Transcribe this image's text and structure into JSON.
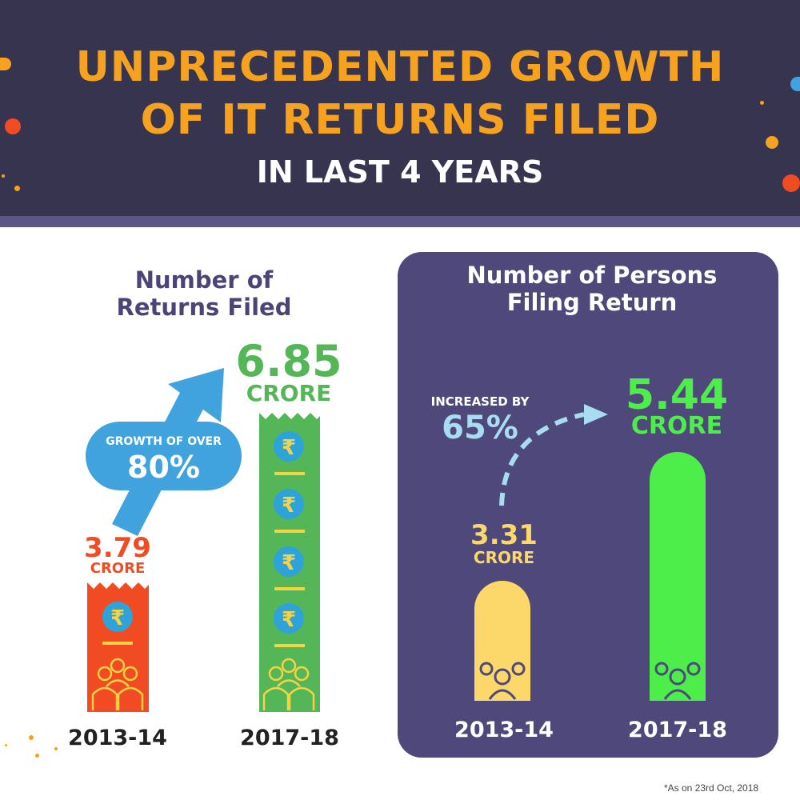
{
  "header": {
    "title_line1": "UNPRECEDENTED GROWTH",
    "title_line2": "OF IT RETURNS FILED",
    "subtitle": "IN LAST 4 YEARS"
  },
  "left_panel": {
    "heading": "Number of Returns Filed",
    "growth_label": "GROWTH OF OVER",
    "growth_value": "80%"
  },
  "right_panel": {
    "heading": "Number of Persons Filing Return",
    "increase_label": "INCREASED BY",
    "increase_value": "65%"
  },
  "footnote": "*As on 23rd Oct, 2018",
  "colors": {
    "header_bg": "#373450",
    "title": "#f6a21e",
    "returns_2013": "#f04b23",
    "returns_2017": "#55b657",
    "persons_2013": "#fcd86b",
    "persons_2017": "#4ded4a",
    "panel_bg": "#4e497a",
    "arrow": "#41a3de"
  },
  "icons": [
    "rupee-icon",
    "people-group-icon",
    "growth-arrow-icon",
    "dashed-arrow-icon"
  ],
  "chart_data": [
    {
      "type": "bar",
      "title": "Number of Returns Filed",
      "categories": [
        "2013-14",
        "2017-18"
      ],
      "values": [
        3.79,
        6.85
      ],
      "value_labels": [
        "3.79",
        "6.85"
      ],
      "unit": "CRORE",
      "annotation": "GROWTH OF OVER 80%"
    },
    {
      "type": "bar",
      "title": "Number of Persons Filing Return",
      "categories": [
        "2013-14",
        "2017-18"
      ],
      "values": [
        3.31,
        5.44
      ],
      "value_labels": [
        "3.31",
        "5.44"
      ],
      "unit": "CRORE",
      "annotation": "INCREASED BY 65%"
    }
  ]
}
